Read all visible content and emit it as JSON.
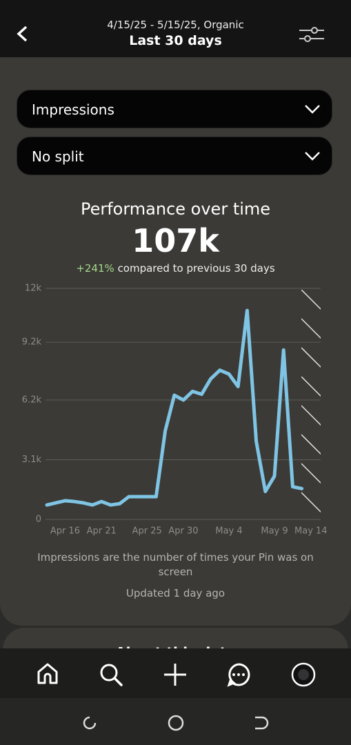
{
  "header": {
    "subtitle": "4/15/25 - 5/15/25, Organic",
    "title": "Last 30 days"
  },
  "filters": [
    "Impressions",
    "No split"
  ],
  "summary": {
    "title": "Performance over time",
    "total": "107k",
    "change": "+241%",
    "comparison": "compared to previous 30 days"
  },
  "chart_data": {
    "type": "line",
    "color": "#7fc4e4",
    "grid": true,
    "categories": [
      null,
      null,
      "Apr 16",
      null,
      null,
      null,
      "Apr 21",
      null,
      null,
      null,
      null,
      "Apr 25",
      null,
      null,
      null,
      "Apr 30",
      null,
      null,
      null,
      null,
      "May 4",
      null,
      null,
      null,
      null,
      "May 9",
      null,
      null,
      null,
      "May 14"
    ],
    "values": [
      750,
      860,
      970,
      930,
      860,
      750,
      930,
      750,
      820,
      1180,
      1180,
      1180,
      1180,
      4600,
      6450,
      6200,
      6650,
      6500,
      7300,
      7750,
      7550,
      6900,
      10850,
      4050,
      1450,
      2250,
      8800,
      1700,
      1600,
      null
    ],
    "ylim": [
      0,
      12000
    ],
    "yticks": [
      0,
      {
        "value": 3100,
        "label": "3.1k"
      },
      {
        "value": 6200,
        "label": "6.2k"
      },
      {
        "value": 9200,
        "label": "9.2k"
      },
      {
        "value": 12000,
        "label": "12k"
      }
    ]
  },
  "footer": {
    "note": "Impressions are the number of times your Pin was on screen",
    "updated": "Updated 1 day ago",
    "next_section": "About this data"
  }
}
